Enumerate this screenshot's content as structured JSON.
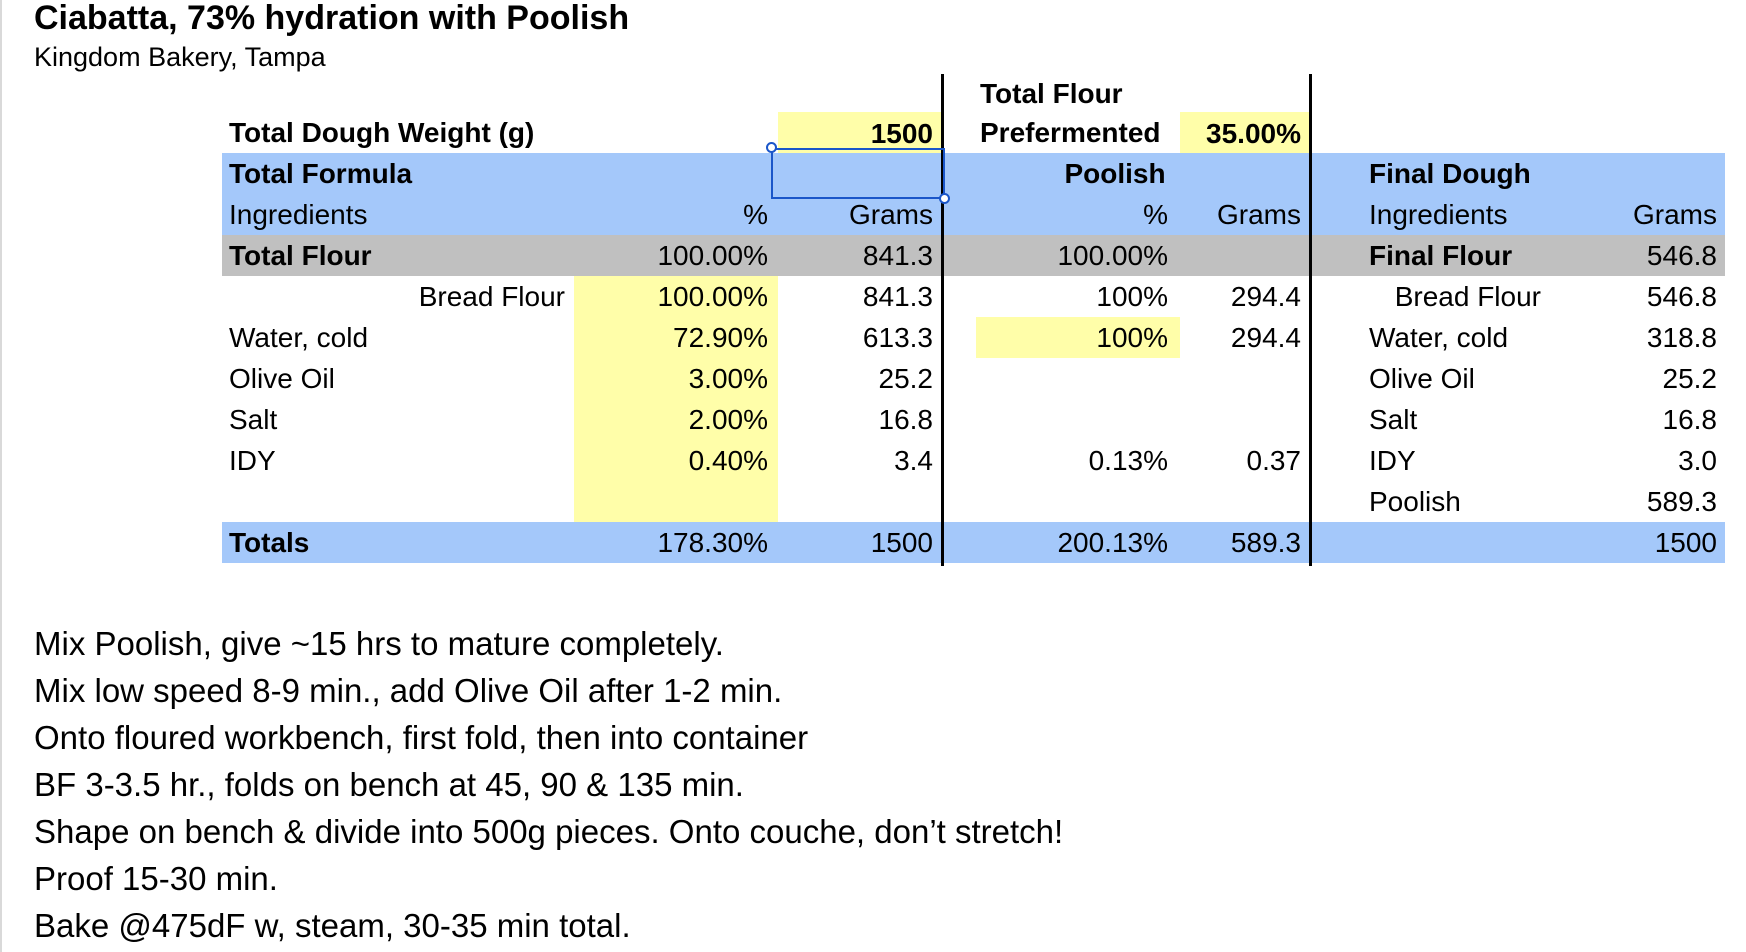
{
  "title": "Ciabatta, 73% hydration with Poolish",
  "subtitle": "Kingdom Bakery, Tampa",
  "dough_weight": {
    "label": "Total Dough Weight (g)",
    "value": "1500"
  },
  "preferment": {
    "label_line1": "Total Flour",
    "label_line2": "Prefermented",
    "value": "35.00%"
  },
  "total_formula": {
    "title": "Total Formula",
    "col_ingredients": "Ingredients",
    "col_pct": "%",
    "col_grams": "Grams"
  },
  "poolish": {
    "title": "Poolish",
    "col_pct": "%",
    "col_grams": "Grams"
  },
  "final_dough": {
    "title": "Final Dough",
    "col_ingredients": "Ingredients",
    "col_grams": "Grams"
  },
  "rows": [
    {
      "name": "Total Flour",
      "pct": "100.00%",
      "grams": "841.3",
      "p_pct": "100.00%",
      "p_grams": "",
      "f_name": "Final Flour",
      "f_grams": "546.8"
    },
    {
      "name": "Bread Flour",
      "pct": "100.00%",
      "grams": "841.3",
      "p_pct": "100%",
      "p_grams": "294.4",
      "f_name": "Bread Flour",
      "f_grams": "546.8"
    },
    {
      "name": "Water, cold",
      "pct": "72.90%",
      "grams": "613.3",
      "p_pct": "100%",
      "p_grams": "294.4",
      "f_name": "Water, cold",
      "f_grams": "318.8"
    },
    {
      "name": "Olive Oil",
      "pct": "3.00%",
      "grams": "25.2",
      "p_pct": "",
      "p_grams": "",
      "f_name": "Olive Oil",
      "f_grams": "25.2"
    },
    {
      "name": "Salt",
      "pct": "2.00%",
      "grams": "16.8",
      "p_pct": "",
      "p_grams": "",
      "f_name": "Salt",
      "f_grams": "16.8"
    },
    {
      "name": "IDY",
      "pct": "0.40%",
      "grams": "3.4",
      "p_pct": "0.13%",
      "p_grams": "0.37",
      "f_name": "IDY",
      "f_grams": "3.0"
    },
    {
      "name": "",
      "pct": "",
      "grams": "",
      "p_pct": "",
      "p_grams": "",
      "f_name": "Poolish",
      "f_grams": "589.3"
    }
  ],
  "totals": {
    "label": "Totals",
    "pct": "178.30%",
    "grams": "1500",
    "p_pct": "200.13%",
    "p_grams": "589.3",
    "f_grams": "1500"
  },
  "notes": [
    "Mix Poolish, give ~15 hrs to mature completely.",
    "Mix low speed 8-9 min., add Olive Oil after 1-2 min.",
    "Onto floured workbench, first fold, then into container",
    "BF 3-3.5 hr., folds on bench at 45, 90 & 135 min.",
    "Shape on bench & divide into 500g pieces.  Onto couche, don’t stretch!",
    "Proof 15-30 min.",
    "Bake @475dF w, steam, 30-35 min total."
  ],
  "colors": {
    "header_blue": "#a4c8fa",
    "total_gray": "#c0c0c0",
    "input_yellow": "#fffea9",
    "selection": "#1a56c9"
  }
}
